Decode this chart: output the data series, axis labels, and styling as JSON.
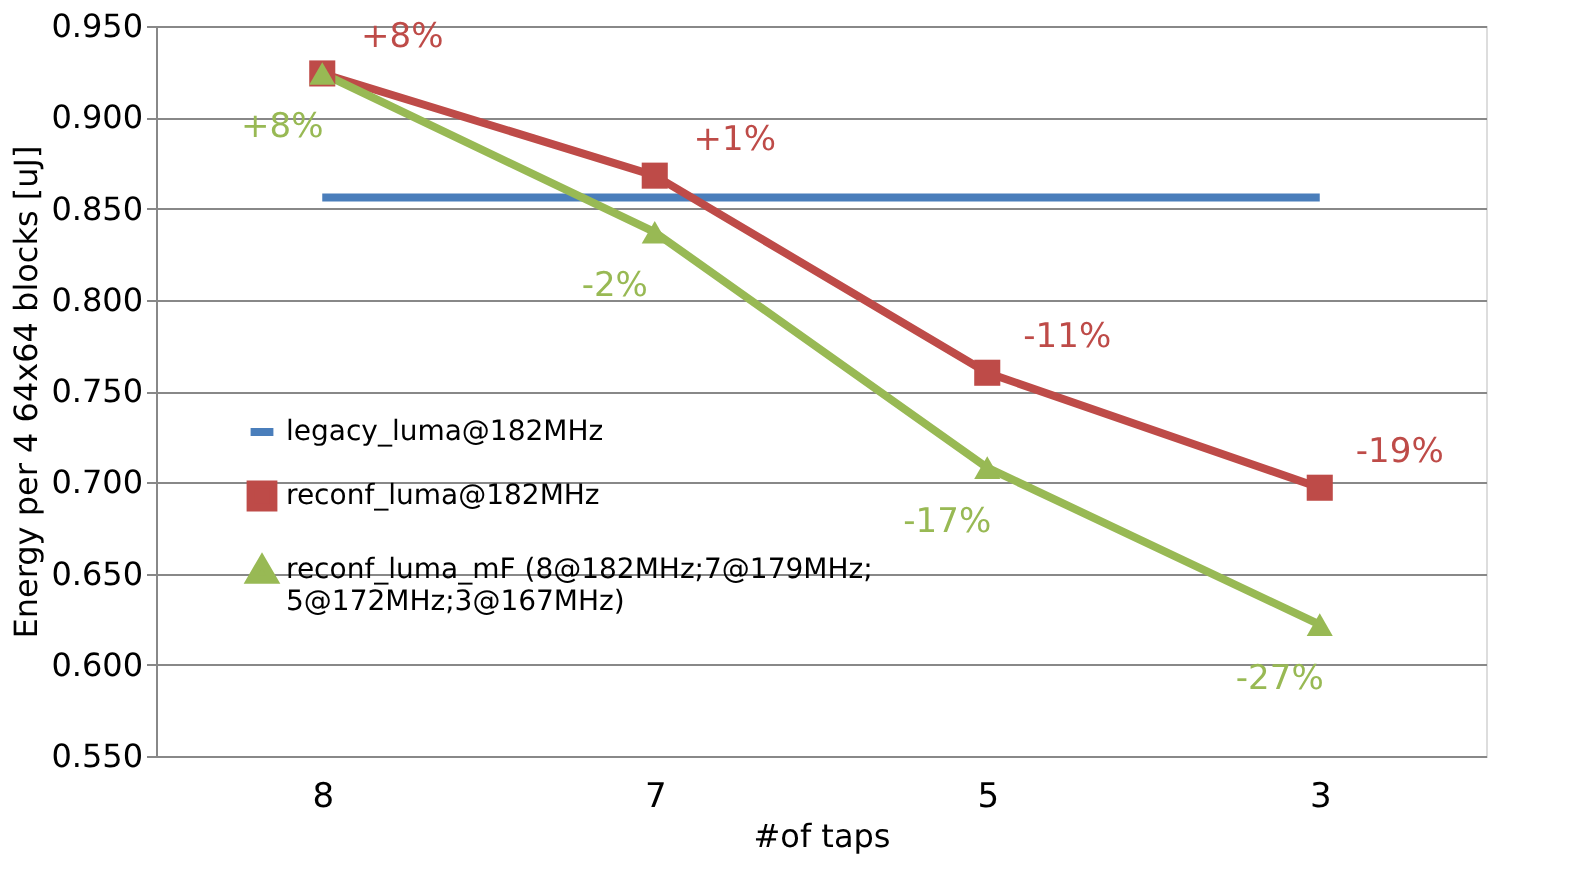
{
  "chart_data": {
    "type": "line",
    "xlabel": "#of taps",
    "ylabel": "Energy per 4 64x64 blocks [uJ]",
    "categories": [
      "8",
      "7",
      "5",
      "3"
    ],
    "ylim": [
      0.55,
      0.95
    ],
    "yticks": [
      {
        "value": 0.55,
        "label": "0.550"
      },
      {
        "value": 0.6,
        "label": "0.600"
      },
      {
        "value": 0.65,
        "label": "0.650"
      },
      {
        "value": 0.7,
        "label": "0.700"
      },
      {
        "value": 0.75,
        "label": "0.750"
      },
      {
        "value": 0.8,
        "label": "0.800"
      },
      {
        "value": 0.85,
        "label": "0.850"
      },
      {
        "value": 0.9,
        "label": "0.900"
      },
      {
        "value": 0.95,
        "label": "0.950"
      }
    ],
    "grid": "y",
    "legend": "left",
    "series": [
      {
        "name": "legacy_luma@182MHz",
        "color": "#4a7ebb",
        "marker": "none",
        "values": [
          0.856,
          0.856,
          0.856,
          0.856
        ]
      },
      {
        "name": "reconf_luma@182MHz",
        "color": "#be4b48",
        "marker": "square",
        "values": [
          0.924,
          0.868,
          0.76,
          0.697
        ]
      },
      {
        "name": "reconf_luma_mF (8@182MHz;7@179MHz; 5@172MHz;3@167MHz)",
        "color": "#98b954",
        "marker": "triangle",
        "values": [
          0.924,
          0.837,
          0.708,
          0.622
        ]
      }
    ],
    "annotations": [
      {
        "text": "+8%",
        "x": "8",
        "y": 0.924
      },
      {
        "text": "+1%",
        "x": "7",
        "y": 0.868
      },
      {
        "text": "-11%",
        "x": "5",
        "y": 0.76
      },
      {
        "text": "-19%",
        "x": "3",
        "y": 0.697
      },
      {
        "text": "+8%",
        "x": "8",
        "y": 0.924
      },
      {
        "text": "-2%",
        "x": "7",
        "y": 0.837
      },
      {
        "text": "-17%",
        "x": "5",
        "y": 0.708
      },
      {
        "text": "-27%",
        "x": "3",
        "y": 0.622
      }
    ]
  }
}
